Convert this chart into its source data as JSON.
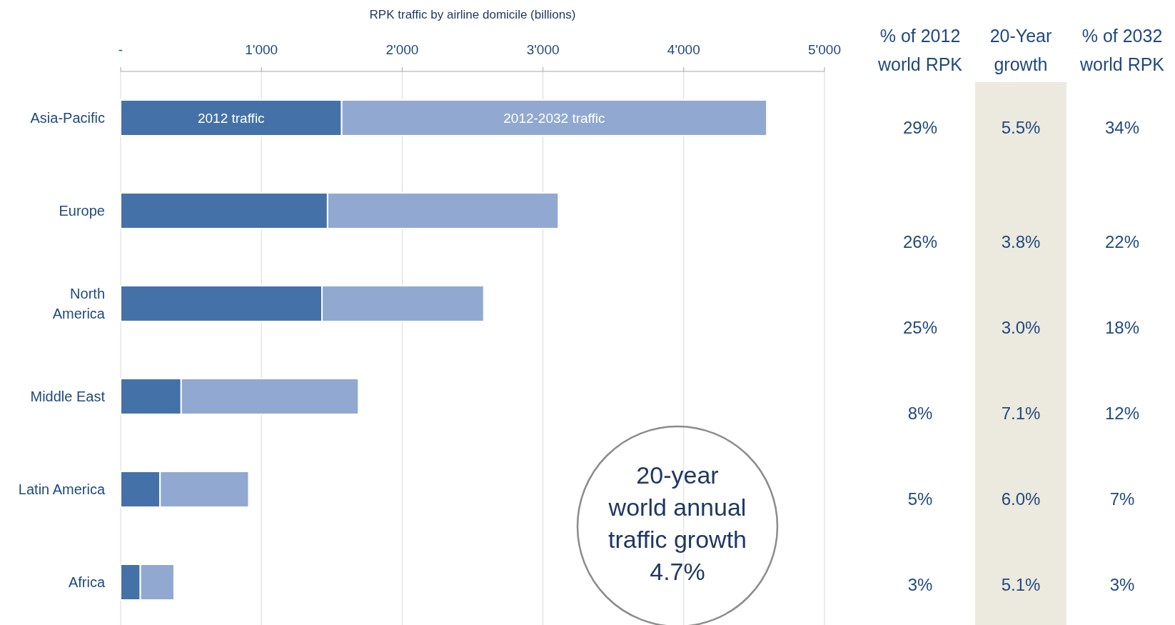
{
  "chart_data": {
    "type": "bar",
    "orientation": "horizontal",
    "stacked": true,
    "title": "RPK traffic by airline domicile (billions)",
    "categories": [
      "Asia-Pacific",
      "Europe",
      "North\nAmerica",
      "Middle East",
      "Latin America",
      "Africa"
    ],
    "series": [
      {
        "name": "2012 traffic",
        "color": "#4472a8",
        "values": [
          1570,
          1470,
          1430,
          430,
          280,
          140
        ]
      },
      {
        "name": "2012-2032 traffic",
        "color": "#91a9d1",
        "values": [
          3020,
          1640,
          1150,
          1260,
          630,
          240
        ]
      }
    ],
    "xlim": [
      0,
      5000
    ],
    "xticks": [
      {
        "value": 0,
        "label": "-"
      },
      {
        "value": 1000,
        "label": "1'000"
      },
      {
        "value": 2000,
        "label": "2'000"
      },
      {
        "value": 3000,
        "label": "3'000"
      },
      {
        "value": 4000,
        "label": "4'000"
      },
      {
        "value": 5000,
        "label": "5'000"
      }
    ],
    "grid": "x",
    "annotations": [
      "% of 2012\nworld RPK",
      "20-Year\ngrowth",
      "% of 2032\nworld RPK",
      "29%",
      "5.5%",
      "34%",
      "26%",
      "3.8%",
      "22%",
      "25%",
      "3.0%",
      "18%",
      "8%",
      "7.1%",
      "12%",
      "5%",
      "6.0%",
      "7%",
      "3%",
      "5.1%",
      "3%",
      "20-year\nworld annual\ntraffic growth\n4.7%"
    ]
  }
}
